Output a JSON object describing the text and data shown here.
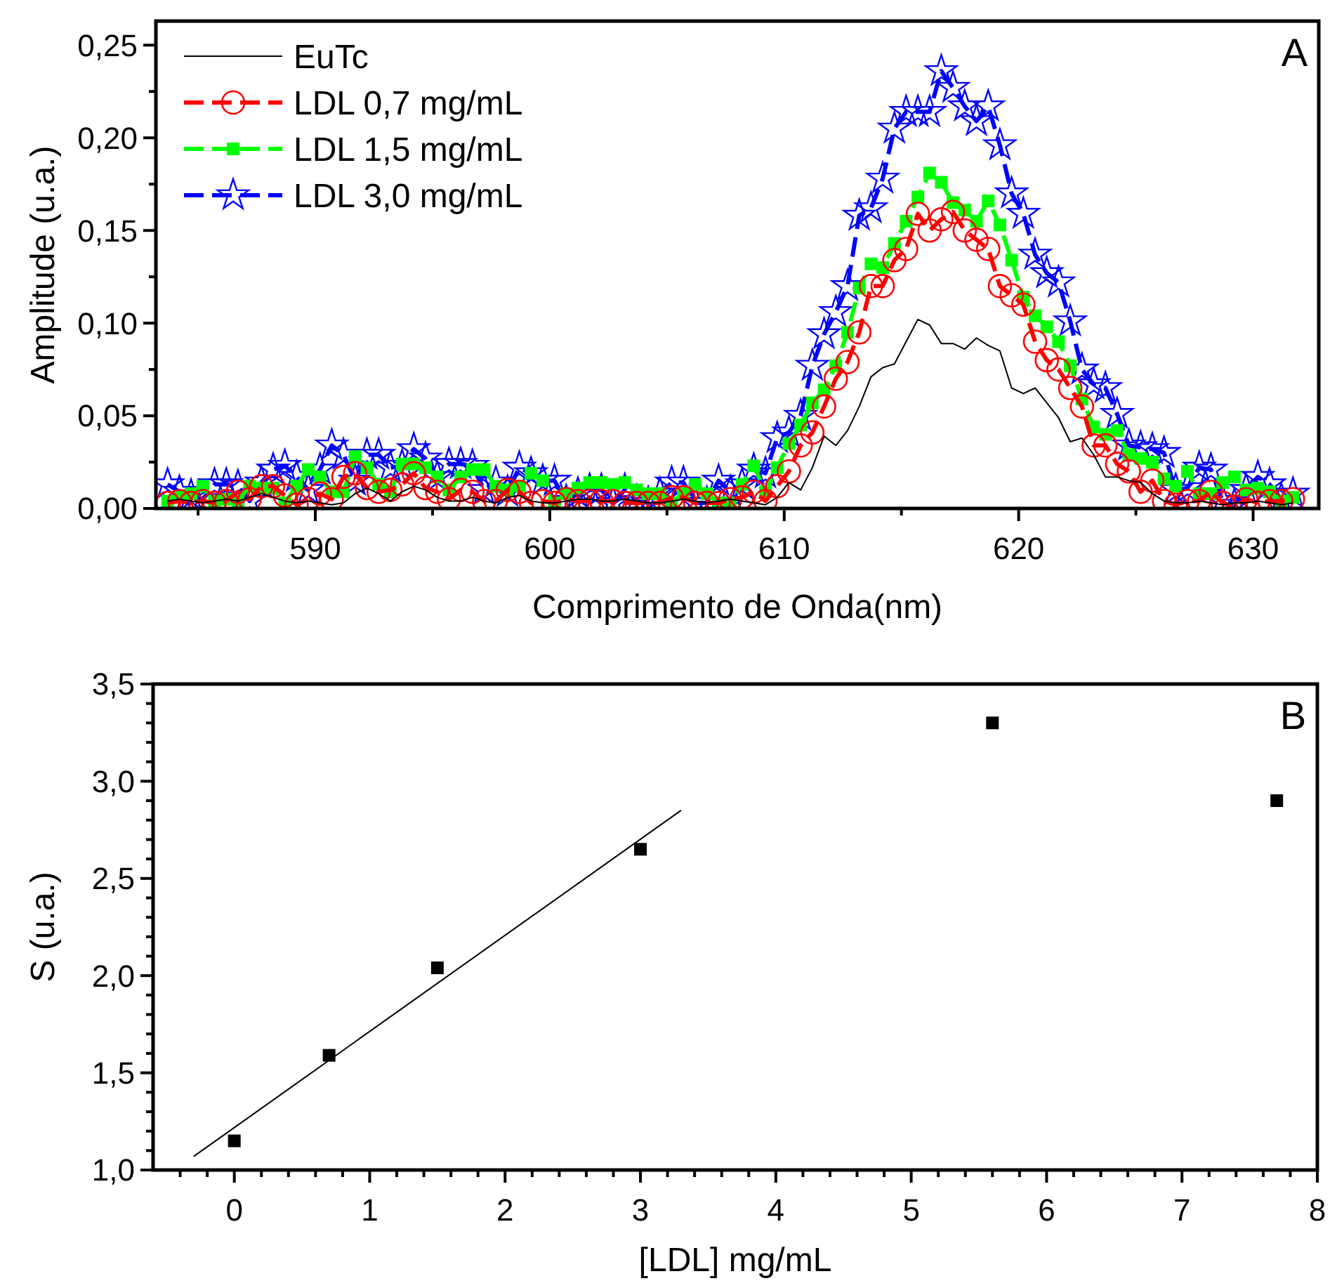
{
  "chart_data": [
    {
      "type": "line",
      "xlabel": "Comprimento de Onda(nm)",
      "ylabel": "Amplitude (u.a.)",
      "annotations": [
        "A"
      ],
      "legend": "top left",
      "xlim": [
        583.2,
        632.8
      ],
      "ylim": [
        0,
        0.263
      ],
      "xticks": [
        {
          "value": 585,
          "label": null
        },
        590,
        {
          "value": 595,
          "label": null
        },
        600,
        {
          "value": 605,
          "label": null
        },
        610,
        {
          "value": 615,
          "label": null
        },
        620,
        {
          "value": 625,
          "label": null
        },
        630
      ],
      "yticks": [
        {
          "value": 0,
          "label": "0,00"
        },
        {
          "value": 0.025,
          "label": null
        },
        {
          "value": 0.05,
          "label": "0,05"
        },
        {
          "value": 0.075,
          "label": null
        },
        {
          "value": 0.1,
          "label": "0,10"
        },
        {
          "value": 0.125,
          "label": null
        },
        {
          "value": 0.15,
          "label": "0,15"
        },
        {
          "value": 0.175,
          "label": null
        },
        {
          "value": 0.2,
          "label": "0,20"
        },
        {
          "value": 0.225,
          "label": null
        },
        {
          "value": 0.25,
          "label": "0,25"
        }
      ],
      "x": [
        583.7,
        584.2,
        584.7,
        585.2,
        585.7,
        586.2,
        586.7,
        587.2,
        587.7,
        588.2,
        588.7,
        589.2,
        589.7,
        590.2,
        590.7,
        591.2,
        591.7,
        592.2,
        592.7,
        593.2,
        593.7,
        594.2,
        594.7,
        595.2,
        595.7,
        596.2,
        596.7,
        597.2,
        597.7,
        598.2,
        598.7,
        599.2,
        599.7,
        600.2,
        600.7,
        601.2,
        601.7,
        602.2,
        602.7,
        603.2,
        603.7,
        604.2,
        604.7,
        605.2,
        605.7,
        606.2,
        606.7,
        607.2,
        607.7,
        608.2,
        608.7,
        609.2,
        609.7,
        610.2,
        610.7,
        611.2,
        611.7,
        612.2,
        612.7,
        613.2,
        613.7,
        614.2,
        614.7,
        615.2,
        615.7,
        616.2,
        616.7,
        617.2,
        617.7,
        618.2,
        618.7,
        619.2,
        619.7,
        620.2,
        620.7,
        621.2,
        621.7,
        622.2,
        622.7,
        623.2,
        623.7,
        624.2,
        624.7,
        625.2,
        625.7,
        626.2,
        626.7,
        627.2,
        627.7,
        628.2,
        628.7,
        629.2,
        629.7,
        630.2,
        630.7,
        631.2,
        631.7
      ],
      "series": [
        {
          "name": "EuTc",
          "color": "#000000",
          "marker": "none",
          "line_style": "solid",
          "values": [
            0.004,
            0.005,
            0.004,
            0.003,
            0.004,
            0.005,
            0.004,
            0.006,
            0.008,
            0.006,
            0.004,
            0.003,
            0.004,
            0.003,
            0.002,
            0.003,
            0.008,
            0.011,
            0.008,
            0.004,
            0.009,
            0.012,
            0.01,
            0.006,
            0.004,
            0.004,
            0.006,
            0.004,
            0.003,
            0.006,
            0.007,
            0.004,
            0.003,
            0.003,
            0.004,
            0.005,
            0.005,
            0.004,
            0.004,
            0.005,
            0.004,
            0.003,
            0.003,
            0.004,
            0.005,
            0.004,
            0.003,
            0.004,
            0.005,
            0.004,
            0.003,
            0.002,
            0.006,
            0.014,
            0.01,
            0.022,
            0.039,
            0.034,
            0.042,
            0.055,
            0.071,
            0.076,
            0.078,
            0.09,
            0.102,
            0.099,
            0.089,
            0.089,
            0.086,
            0.092,
            0.088,
            0.085,
            0.065,
            0.062,
            0.065,
            0.057,
            0.049,
            0.036,
            0.038,
            0.029,
            0.017,
            0.017,
            0.015,
            0.014,
            0.008,
            0.004,
            0.003,
            0.003,
            0.004,
            0.003,
            0.002,
            0.003,
            0.003,
            0.004,
            0.003,
            0.002,
            0.003
          ]
        },
        {
          "name": "LDL 0,7 mg/mL",
          "color": "#ff0000",
          "marker": "circle",
          "line_style": "dashed",
          "values": [
            0.003,
            0.004,
            0.003,
            0.004,
            0.003,
            0.004,
            0.009,
            0.005,
            0.012,
            0.012,
            0.007,
            0.002,
            0.005,
            0.008,
            0.005,
            0.017,
            0.019,
            0.011,
            0.009,
            0.01,
            0.013,
            0.019,
            0.011,
            0.009,
            0.005,
            0.01,
            0.009,
            0.004,
            0.004,
            0.01,
            0.009,
            0.003,
            0.004,
            0.003,
            0.005,
            0.004,
            0.004,
            0.004,
            0.004,
            0.003,
            0.003,
            0.003,
            0.003,
            0.006,
            0.006,
            0.003,
            0.003,
            0.003,
            0.005,
            0.006,
            0.009,
            0.004,
            0.012,
            0.02,
            0.034,
            0.041,
            0.055,
            0.07,
            0.079,
            0.095,
            0.12,
            0.12,
            0.134,
            0.14,
            0.159,
            0.15,
            0.156,
            0.16,
            0.15,
            0.145,
            0.14,
            0.12,
            0.115,
            0.11,
            0.09,
            0.08,
            0.075,
            0.065,
            0.055,
            0.034,
            0.034,
            0.024,
            0.02,
            0.009,
            0.015,
            0.004,
            0.002,
            0.004,
            0.004,
            0.009,
            0.003,
            0.001,
            0.005,
            0.003,
            0.004,
            0.004,
            0.005
          ]
        },
        {
          "name": "LDL 1,5 mg/mL",
          "color": "#00ff00",
          "marker": "square",
          "line_style": "dashed",
          "values": [
            0.004,
            0.006,
            0.008,
            0.012,
            0.004,
            0.005,
            0.004,
            0.012,
            0.011,
            0.011,
            0.003,
            0.012,
            0.021,
            0.017,
            0.009,
            0.009,
            0.028,
            0.022,
            0.013,
            0.009,
            0.024,
            0.024,
            0.022,
            0.017,
            0.01,
            0.017,
            0.021,
            0.021,
            0.012,
            0.01,
            0.012,
            0.019,
            0.015,
            0.003,
            0.008,
            0.011,
            0.014,
            0.014,
            0.013,
            0.014,
            0.01,
            0.008,
            0.008,
            0.003,
            0.008,
            0.013,
            0.008,
            0.003,
            0.003,
            0.013,
            0.023,
            0.009,
            0.022,
            0.035,
            0.045,
            0.057,
            0.064,
            0.077,
            0.095,
            0.119,
            0.132,
            0.13,
            0.143,
            0.155,
            0.168,
            0.181,
            0.176,
            0.165,
            0.161,
            0.155,
            0.166,
            0.153,
            0.134,
            0.114,
            0.104,
            0.098,
            0.09,
            0.077,
            0.059,
            0.044,
            0.04,
            0.042,
            0.029,
            0.027,
            0.025,
            0.016,
            0.012,
            0.02,
            0.008,
            0.008,
            0.014,
            0.017,
            0.01,
            0.011,
            0.009,
            0.004,
            0.006
          ]
        },
        {
          "name": "LDL 3,0 mg/mL",
          "color": "#0000ff",
          "marker": "star",
          "line_style": "dashed",
          "values": [
            0.013,
            0.009,
            0.007,
            0.005,
            0.013,
            0.013,
            0.012,
            0.004,
            0.014,
            0.021,
            0.023,
            0.017,
            0.01,
            0.021,
            0.034,
            0.029,
            0.015,
            0.029,
            0.029,
            0.022,
            0.023,
            0.032,
            0.027,
            0.017,
            0.024,
            0.024,
            0.023,
            0.01,
            0.014,
            0.009,
            0.022,
            0.019,
            0.015,
            0.015,
            0.004,
            0.008,
            0.01,
            0.01,
            0.003,
            0.01,
            0.004,
            0.003,
            0.008,
            0.014,
            0.014,
            0.003,
            0.003,
            0.015,
            0.009,
            0.013,
            0.021,
            0.019,
            0.038,
            0.041,
            0.05,
            0.077,
            0.094,
            0.106,
            0.12,
            0.158,
            0.162,
            0.178,
            0.205,
            0.214,
            0.214,
            0.214,
            0.236,
            0.227,
            0.217,
            0.209,
            0.217,
            0.196,
            0.17,
            0.159,
            0.137,
            0.127,
            0.122,
            0.101,
            0.075,
            0.067,
            0.065,
            0.051,
            0.034,
            0.033,
            0.032,
            0.03,
            0.01,
            0.011,
            0.022,
            0.021,
            0.004,
            0.002,
            0.01,
            0.017,
            0.013,
            0.005,
            0.008
          ]
        }
      ]
    },
    {
      "type": "scatter",
      "xlabel": "[LDL] mg/mL",
      "ylabel": "S (u.a.)",
      "annotations": [
        "B"
      ],
      "xlim": [
        -0.6,
        8
      ],
      "ylim": [
        1.0,
        3.5
      ],
      "xticks": [
        {
          "value": -0.4,
          "label": null
        },
        {
          "value": -0.2,
          "label": null
        },
        0,
        {
          "value": 0.2,
          "label": null
        },
        {
          "value": 0.4,
          "label": null
        },
        {
          "value": 0.6,
          "label": null
        },
        {
          "value": 0.8,
          "label": null
        },
        1,
        {
          "value": 1.2,
          "label": null
        },
        {
          "value": 1.4,
          "label": null
        },
        {
          "value": 1.6,
          "label": null
        },
        {
          "value": 1.8,
          "label": null
        },
        2,
        {
          "value": 2.2,
          "label": null
        },
        {
          "value": 2.4,
          "label": null
        },
        {
          "value": 2.6,
          "label": null
        },
        {
          "value": 2.8,
          "label": null
        },
        3,
        {
          "value": 3.2,
          "label": null
        },
        {
          "value": 3.4,
          "label": null
        },
        {
          "value": 3.6,
          "label": null
        },
        {
          "value": 3.8,
          "label": null
        },
        4,
        {
          "value": 4.2,
          "label": null
        },
        {
          "value": 4.4,
          "label": null
        },
        {
          "value": 4.6,
          "label": null
        },
        {
          "value": 4.8,
          "label": null
        },
        5,
        {
          "value": 5.2,
          "label": null
        },
        {
          "value": 5.4,
          "label": null
        },
        {
          "value": 5.6,
          "label": null
        },
        {
          "value": 5.8,
          "label": null
        },
        6,
        {
          "value": 6.2,
          "label": null
        },
        {
          "value": 6.4,
          "label": null
        },
        {
          "value": 6.6,
          "label": null
        },
        {
          "value": 6.8,
          "label": null
        },
        7,
        {
          "value": 7.2,
          "label": null
        },
        {
          "value": 7.4,
          "label": null
        },
        {
          "value": 7.6,
          "label": null
        },
        {
          "value": 7.8,
          "label": null
        },
        8
      ],
      "yticks": [
        {
          "value": 1.0,
          "label": "1,0"
        },
        {
          "value": 1.1,
          "label": null
        },
        {
          "value": 1.2,
          "label": null
        },
        {
          "value": 1.3,
          "label": null
        },
        {
          "value": 1.4,
          "label": null
        },
        {
          "value": 1.5,
          "label": "1,5"
        },
        {
          "value": 1.6,
          "label": null
        },
        {
          "value": 1.7,
          "label": null
        },
        {
          "value": 1.8,
          "label": null
        },
        {
          "value": 1.9,
          "label": null
        },
        {
          "value": 2.0,
          "label": "2,0"
        },
        {
          "value": 2.1,
          "label": null
        },
        {
          "value": 2.2,
          "label": null
        },
        {
          "value": 2.3,
          "label": null
        },
        {
          "value": 2.4,
          "label": null
        },
        {
          "value": 2.5,
          "label": "2,5"
        },
        {
          "value": 2.6,
          "label": null
        },
        {
          "value": 2.7,
          "label": null
        },
        {
          "value": 2.8,
          "label": null
        },
        {
          "value": 2.9,
          "label": null
        },
        {
          "value": 3.0,
          "label": "3,0"
        },
        {
          "value": 3.1,
          "label": null
        },
        {
          "value": 3.2,
          "label": null
        },
        {
          "value": 3.3,
          "label": null
        },
        {
          "value": 3.4,
          "label": null
        },
        {
          "value": 3.5,
          "label": "3,5"
        }
      ],
      "series": [
        {
          "type": "scatter",
          "color": "#000000",
          "marker": "square",
          "x": [
            0,
            0.7,
            1.5,
            3.0,
            5.6,
            7.7
          ],
          "values": [
            1.15,
            1.59,
            2.04,
            2.65,
            3.3,
            2.9
          ]
        },
        {
          "type": "line",
          "color": "#000000",
          "marker": "none",
          "line_style": "solid",
          "x": [
            -0.3,
            3.3
          ],
          "values": [
            1.07,
            2.85
          ]
        }
      ]
    }
  ]
}
